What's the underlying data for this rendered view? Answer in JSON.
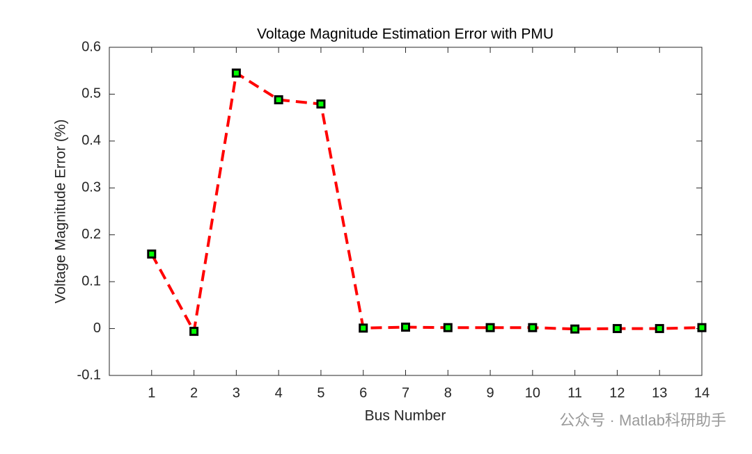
{
  "chart_data": {
    "type": "line",
    "title": "Voltage Magnitude Estimation Error with PMU",
    "xlabel": "Bus Number",
    "ylabel": "Voltage Magnitude Error (%)",
    "x": [
      1,
      2,
      3,
      4,
      5,
      6,
      7,
      8,
      9,
      10,
      11,
      12,
      13,
      14
    ],
    "values": [
      0.159,
      -0.006,
      0.545,
      0.488,
      0.479,
      0.001,
      0.003,
      0.002,
      0.002,
      0.002,
      -0.001,
      0.0,
      0.0,
      0.002
    ],
    "color": "#ff0000",
    "line_style": "dashed",
    "marker_edge_color": "#000000",
    "marker_face_color": "#00ff00",
    "xlim": [
      0,
      14
    ],
    "xticks": [
      1,
      2,
      3,
      4,
      5,
      6,
      7,
      8,
      9,
      10,
      11,
      12,
      13,
      14
    ],
    "ylim": [
      -0.1,
      0.6
    ],
    "yticks": [
      -0.1,
      0,
      0.1,
      0.2,
      0.3,
      0.4,
      0.5,
      0.6
    ],
    "grid": false
  },
  "watermark": "公众号 · Matlab科研助手"
}
